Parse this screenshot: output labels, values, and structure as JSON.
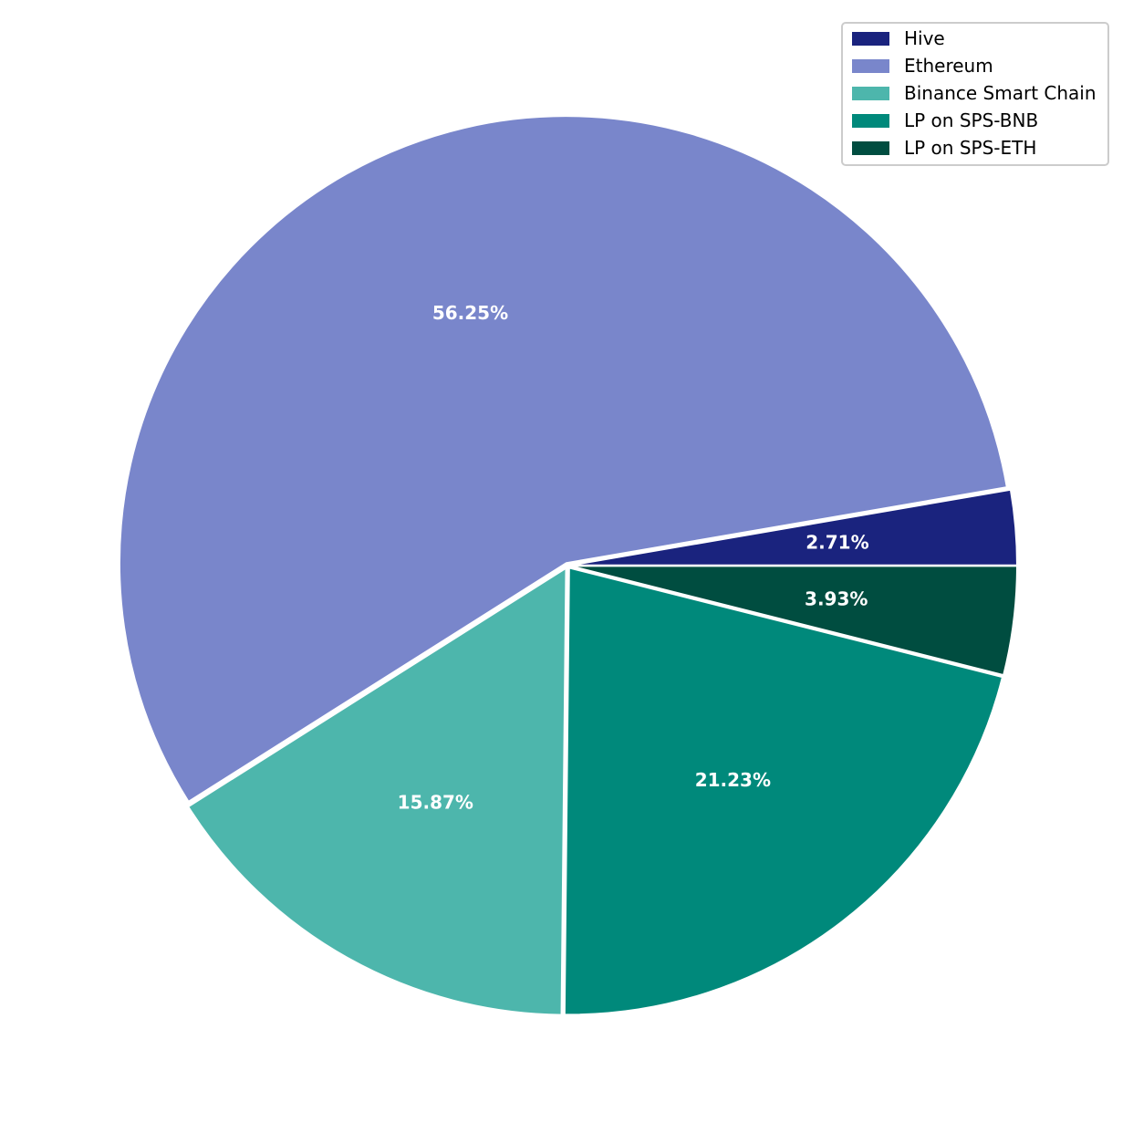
{
  "chart_data": {
    "type": "pie",
    "title": "",
    "start_angle_deg": 0,
    "direction": "counterclockwise",
    "categories": [
      "Hive",
      "Ethereum",
      "Binance Smart Chain",
      "LP on SPS-BNB",
      "LP on SPS-ETH"
    ],
    "values": [
      2.71,
      56.25,
      15.87,
      21.23,
      3.93
    ],
    "labels": [
      "2.71%",
      "56.25%",
      "15.87%",
      "21.23%",
      "3.93%"
    ],
    "colors": [
      "#1a237e",
      "#7986cb",
      "#4db6ac",
      "#00897b",
      "#004d40"
    ],
    "legend_position": "upper right"
  },
  "legend": {
    "items": [
      {
        "label": "Hive",
        "color": "#1a237e"
      },
      {
        "label": "Ethereum",
        "color": "#7986cb"
      },
      {
        "label": "Binance Smart Chain",
        "color": "#4db6ac"
      },
      {
        "label": "LP on SPS-BNB",
        "color": "#00897b"
      },
      {
        "label": "LP on SPS-ETH",
        "color": "#004d40"
      }
    ]
  }
}
